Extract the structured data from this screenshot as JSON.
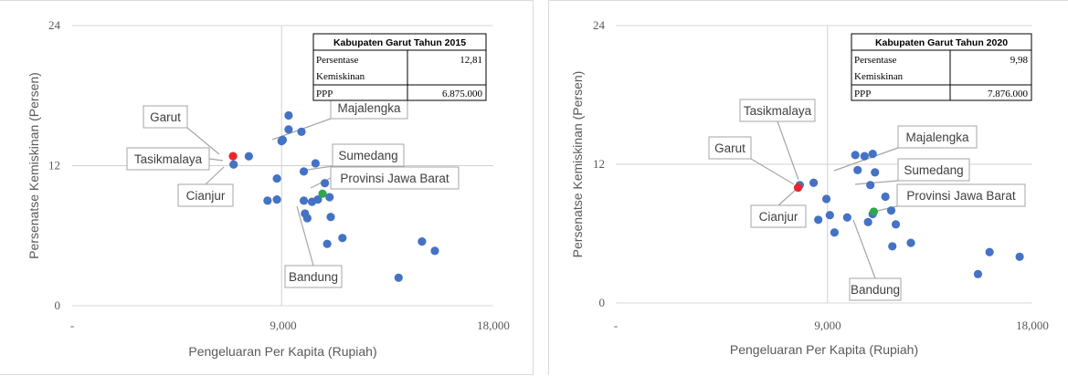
{
  "chart_data": [
    {
      "type": "scatter",
      "xlabel": "Pengeluaran Per Kapita (Rupiah)",
      "ylabel": "Persenatse Kemiskinan (Persen)",
      "xlim": [
        0,
        18000
      ],
      "ylim": [
        0,
        24
      ],
      "x_ticks": [
        "-",
        "9,000",
        "18,000"
      ],
      "y_ticks": [
        "0",
        "12",
        "24"
      ],
      "reference_lines": {
        "x": 8950,
        "y": 12
      },
      "colors": {
        "points": "#4472c4",
        "highlight": "#e8262b",
        "province": "#2ea84c"
      },
      "info_table": {
        "title": "Kabupaten Garut Tahun 2015",
        "rows": [
          {
            "label_line1": "Persentase",
            "label_line2": "Kemiskinan",
            "value": "12,81"
          },
          {
            "label_line1": "PPP",
            "label_line2": "",
            "value": "6.875.000"
          }
        ]
      },
      "annotations": [
        {
          "label": "Garut",
          "x": 6875,
          "y": 12.81
        },
        {
          "label": "Tasikmalaya",
          "x": 6950,
          "y": 12.3
        },
        {
          "label": "Cianjur",
          "x": 6900,
          "y": 12.1
        },
        {
          "label": "Majalengka",
          "x": 9400,
          "y": 14.2
        },
        {
          "label": "Sumedang",
          "x": 9950,
          "y": 11.5
        },
        {
          "label": "Provinsi Jawa Barat",
          "x": 10700,
          "y": 9.6
        },
        {
          "label": "Bandung",
          "x": 10250,
          "y": 7.6
        }
      ],
      "points": [
        {
          "x": 6900,
          "y": 12.1
        },
        {
          "x": 7550,
          "y": 12.8
        },
        {
          "x": 9250,
          "y": 16.3
        },
        {
          "x": 9250,
          "y": 15.1
        },
        {
          "x": 9800,
          "y": 14.9
        },
        {
          "x": 9000,
          "y": 14.2
        },
        {
          "x": 8950,
          "y": 14.1
        },
        {
          "x": 9900,
          "y": 11.5
        },
        {
          "x": 8750,
          "y": 10.9
        },
        {
          "x": 10400,
          "y": 12.2
        },
        {
          "x": 10800,
          "y": 10.5
        },
        {
          "x": 8350,
          "y": 9.0
        },
        {
          "x": 8750,
          "y": 9.1
        },
        {
          "x": 9900,
          "y": 9.0
        },
        {
          "x": 10250,
          "y": 8.9
        },
        {
          "x": 10500,
          "y": 9.1
        },
        {
          "x": 11000,
          "y": 9.3
        },
        {
          "x": 9950,
          "y": 7.9
        },
        {
          "x": 10050,
          "y": 7.5
        },
        {
          "x": 11050,
          "y": 7.6
        },
        {
          "x": 11550,
          "y": 5.8
        },
        {
          "x": 10900,
          "y": 5.3
        },
        {
          "x": 14950,
          "y": 5.5
        },
        {
          "x": 15500,
          "y": 4.7
        },
        {
          "x": 13950,
          "y": 2.4
        },
        {
          "x": 6875,
          "y": 12.81,
          "highlight": "garut"
        },
        {
          "x": 10700,
          "y": 9.6,
          "highlight": "province"
        }
      ]
    },
    {
      "type": "scatter",
      "xlabel": "Pengeluaran Per Kapita (Rupiah)",
      "ylabel": "Persenatse Kemiskinan (Persen)",
      "xlim": [
        0,
        18000
      ],
      "ylim": [
        0,
        24
      ],
      "x_ticks": [
        "-",
        "9,000",
        "18,000"
      ],
      "y_ticks": [
        "0",
        "12",
        "24"
      ],
      "reference_lines": {
        "x": 9150,
        "y": 12
      },
      "colors": {
        "points": "#4472c4",
        "highlight": "#e8262b",
        "province": "#2ea84c"
      },
      "info_table": {
        "title": "Kabupaten Garut Tahun 2020",
        "rows": [
          {
            "label_line1": "Persentase",
            "label_line2": "Kemiskinan",
            "value": "9,98"
          },
          {
            "label_line1": "PPP",
            "label_line2": "",
            "value": "7.876.000"
          }
        ]
      },
      "annotations": [
        {
          "label": "Tasikmalaya",
          "x": 7950,
          "y": 10.2
        },
        {
          "label": "Garut",
          "x": 7876,
          "y": 9.98
        },
        {
          "label": "Cianjur",
          "x": 7900,
          "y": 10.0
        },
        {
          "label": "Majalengka",
          "x": 10150,
          "y": 11.5
        },
        {
          "label": "Sumedang",
          "x": 10650,
          "y": 10.2
        },
        {
          "label": "Provinsi Jawa Barat",
          "x": 11150,
          "y": 7.9
        },
        {
          "label": "Bandung",
          "x": 10850,
          "y": 7.0
        }
      ],
      "points": [
        {
          "x": 8550,
          "y": 10.4
        },
        {
          "x": 7950,
          "y": 10.2
        },
        {
          "x": 10350,
          "y": 12.8
        },
        {
          "x": 10750,
          "y": 12.7
        },
        {
          "x": 11100,
          "y": 12.9
        },
        {
          "x": 10450,
          "y": 11.5
        },
        {
          "x": 11200,
          "y": 11.3
        },
        {
          "x": 11000,
          "y": 10.2
        },
        {
          "x": 11650,
          "y": 9.2
        },
        {
          "x": 9100,
          "y": 9.0
        },
        {
          "x": 11900,
          "y": 8.0
        },
        {
          "x": 11100,
          "y": 7.7
        },
        {
          "x": 9250,
          "y": 7.6
        },
        {
          "x": 8750,
          "y": 7.2
        },
        {
          "x": 10000,
          "y": 7.4
        },
        {
          "x": 10900,
          "y": 7.0
        },
        {
          "x": 12100,
          "y": 6.8
        },
        {
          "x": 9450,
          "y": 6.1
        },
        {
          "x": 12750,
          "y": 5.2
        },
        {
          "x": 11950,
          "y": 4.9
        },
        {
          "x": 16150,
          "y": 4.4
        },
        {
          "x": 17450,
          "y": 4.0
        },
        {
          "x": 15650,
          "y": 2.5
        },
        {
          "x": 7876,
          "y": 9.98,
          "highlight": "garut"
        },
        {
          "x": 11150,
          "y": 7.9,
          "highlight": "province"
        }
      ]
    }
  ]
}
